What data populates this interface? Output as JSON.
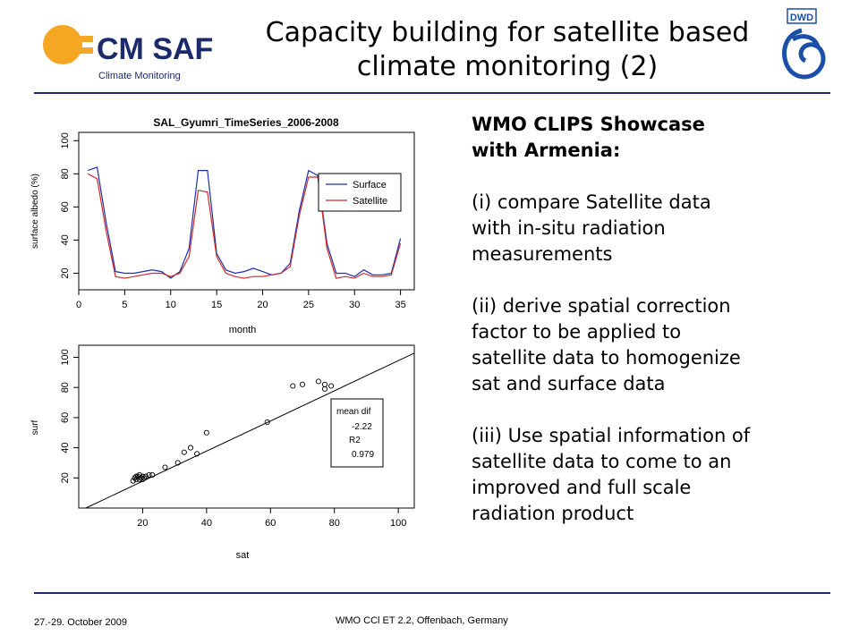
{
  "header": {
    "title_line1": "Capacity building for satellite based",
    "title_line2": "climate monitoring (2)",
    "logo": {
      "brand": "CM SAF",
      "tagline": "Climate Monitoring",
      "icon": "sun-arrow-logo-icon"
    },
    "partner_logo": {
      "text": "DWD",
      "icon": "dwd-swirl-icon"
    }
  },
  "colors": {
    "rule": "#1b2a6b",
    "surface": "#1f2fa8",
    "satellite": "#cc2b2b",
    "logo_orange": "#f5a623",
    "logo_blue": "#1b2a6b"
  },
  "text_panel": {
    "heading_line1": "WMO CLIPS Showcase",
    "heading_line2": "with Armenia:",
    "items": [
      [
        "(i) compare Satellite data",
        "with in-situ radiation",
        "measurements"
      ],
      [
        "(ii) derive spatial correction",
        "factor to be applied to",
        "satellite data to homogenize",
        "sat and surface data"
      ],
      [
        "(iii) Use spatial information of",
        "satellite data to come to an",
        "improved and full scale",
        "radiation product"
      ]
    ]
  },
  "footer": {
    "date": "27.-29. October 2009",
    "event": "WMO CCl ET 2.2, Offenbach, Germany"
  },
  "chart_data": [
    {
      "type": "line",
      "title": "SAL_Gyumri_TimeSeries_2006-2008",
      "xlabel": "month",
      "ylabel": "surface albedo (%)",
      "xlim": [
        0,
        36.5
      ],
      "ylim": [
        10,
        105
      ],
      "xticks": [
        0,
        5,
        10,
        15,
        20,
        25,
        30,
        35
      ],
      "yticks": [
        20,
        40,
        60,
        80,
        100
      ],
      "legend": "top-right",
      "x": [
        1,
        2,
        3,
        4,
        5,
        6,
        7,
        8,
        9,
        10,
        11,
        12,
        13,
        14,
        15,
        16,
        17,
        18,
        19,
        20,
        21,
        22,
        23,
        24,
        25,
        26,
        27,
        28,
        29,
        30,
        31,
        32,
        33,
        34,
        35,
        36
      ],
      "series": [
        {
          "name": "Surface",
          "color": "#1f2fa8",
          "values": [
            82,
            84,
            50,
            21,
            20,
            20,
            21,
            22,
            21,
            17,
            21,
            35,
            82,
            82,
            32,
            22,
            20,
            21,
            23,
            21,
            19,
            20,
            26,
            58,
            82,
            79,
            38,
            20,
            20,
            18,
            22,
            19,
            19,
            20,
            41,
            null
          ]
        },
        {
          "name": "Satellite",
          "color": "#cc2b2b",
          "values": [
            80,
            77,
            45,
            18,
            17,
            18,
            19,
            20,
            20,
            18,
            20,
            30,
            70,
            69,
            30,
            20,
            18,
            17,
            18,
            18,
            19,
            20,
            24,
            55,
            78,
            78,
            35,
            17,
            18,
            17,
            20,
            18,
            18,
            19,
            38,
            null
          ]
        }
      ]
    },
    {
      "type": "scatter",
      "xlabel": "sat",
      "ylabel": "surf",
      "xlim": [
        0,
        105
      ],
      "ylim": [
        0,
        108
      ],
      "xticks": [
        20,
        40,
        60,
        80,
        100
      ],
      "yticks": [
        20,
        40,
        60,
        80,
        100
      ],
      "points": [
        [
          17,
          18
        ],
        [
          17.5,
          20
        ],
        [
          18,
          21
        ],
        [
          18,
          19
        ],
        [
          18.5,
          21
        ],
        [
          19,
          19
        ],
        [
          19,
          22
        ],
        [
          19.5,
          20
        ],
        [
          20,
          21
        ],
        [
          20,
          19
        ],
        [
          20.5,
          20
        ],
        [
          21,
          21
        ],
        [
          22,
          22
        ],
        [
          23,
          22
        ],
        [
          27,
          27
        ],
        [
          31,
          30
        ],
        [
          33,
          37
        ],
        [
          35,
          40
        ],
        [
          37,
          36
        ],
        [
          40,
          50
        ],
        [
          59,
          57
        ],
        [
          67,
          81
        ],
        [
          70,
          82
        ],
        [
          75,
          84
        ],
        [
          77,
          79
        ],
        [
          77,
          82
        ],
        [
          79,
          81
        ]
      ],
      "fit_line": {
        "intercept": -2.22,
        "slope": 1.0
      },
      "annotation": {
        "label1": "mean dif",
        "value1": "-2.22",
        "label2": "R2",
        "value2": "0.979"
      }
    }
  ]
}
